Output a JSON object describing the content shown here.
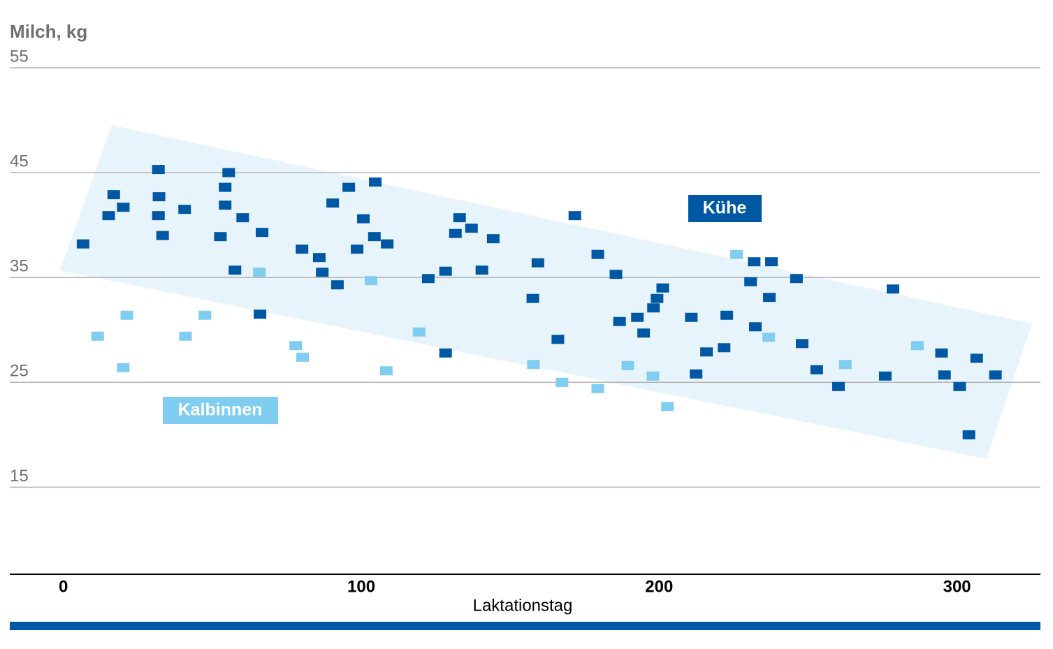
{
  "chart_data": {
    "type": "scatter",
    "y_label": "Milch, kg",
    "x_label": "Laktationstag",
    "xlim": [
      -18,
      328
    ],
    "ylim": [
      6.7,
      55
    ],
    "xticks": [
      0,
      100,
      200,
      300
    ],
    "yticks": [
      15,
      25,
      35,
      45,
      55
    ],
    "grid": true,
    "series": [
      {
        "name": "Kühe",
        "color": "#0057a3",
        "x": [
          6.6,
          15.2,
          16.9,
          20.1,
          31.9,
          32.1,
          31.9,
          33.3,
          40.7,
          55.5,
          54.3,
          54.3,
          52.7,
          60.2,
          57.6,
          66.7,
          66.0,
          80.1,
          85.9,
          86.9,
          92.0,
          90.4,
          95.8,
          100.7,
          98.6,
          104.7,
          104.4,
          108.7,
          122.5,
          128.3,
          128.3,
          131.6,
          133.0,
          137.0,
          140.5,
          144.3,
          157.6,
          159.3,
          166.0,
          171.7,
          179.4,
          185.5,
          186.7,
          192.7,
          194.8,
          198.1,
          199.3,
          201.2,
          210.8,
          212.4,
          215.9,
          222.7,
          221.8,
          230.7,
          231.9,
          232.3,
          237.0,
          237.7,
          246.1,
          248.0,
          252.9,
          260.2,
          275.9,
          278.5,
          294.8,
          295.8,
          300.9,
          306.6,
          304.0,
          312.9
        ],
        "values": [
          38.2,
          40.9,
          42.9,
          41.7,
          45.3,
          42.7,
          40.9,
          39.0,
          41.5,
          45.0,
          43.6,
          41.9,
          38.9,
          40.7,
          35.7,
          39.3,
          31.5,
          37.7,
          36.9,
          35.5,
          34.3,
          42.1,
          43.6,
          40.6,
          37.7,
          44.1,
          38.9,
          38.2,
          34.9,
          35.6,
          27.8,
          39.2,
          40.7,
          39.7,
          35.7,
          38.7,
          33.0,
          36.4,
          29.1,
          40.9,
          37.2,
          35.3,
          30.8,
          31.2,
          29.7,
          32.1,
          33.0,
          34.0,
          31.2,
          25.8,
          27.9,
          31.4,
          28.3,
          34.6,
          36.5,
          30.3,
          33.1,
          36.5,
          34.9,
          28.7,
          26.2,
          24.6,
          25.6,
          33.9,
          27.8,
          25.7,
          24.6,
          27.3,
          20.0,
          25.7
        ]
      },
      {
        "name": "Kalbinnen",
        "color": "#7fcdf0",
        "x": [
          11.5,
          21.3,
          20.1,
          41.0,
          47.5,
          65.8,
          78.0,
          80.3,
          103.3,
          108.4,
          119.4,
          157.8,
          167.4,
          179.4,
          189.5,
          197.9,
          202.8,
          226.0,
          236.8,
          262.5,
          286.7
        ],
        "values": [
          29.4,
          31.4,
          26.4,
          29.4,
          31.4,
          35.5,
          28.5,
          27.4,
          34.7,
          26.1,
          29.8,
          26.7,
          25.0,
          24.4,
          26.6,
          25.6,
          22.7,
          37.2,
          29.3,
          26.7,
          28.5
        ]
      }
    ]
  }
}
